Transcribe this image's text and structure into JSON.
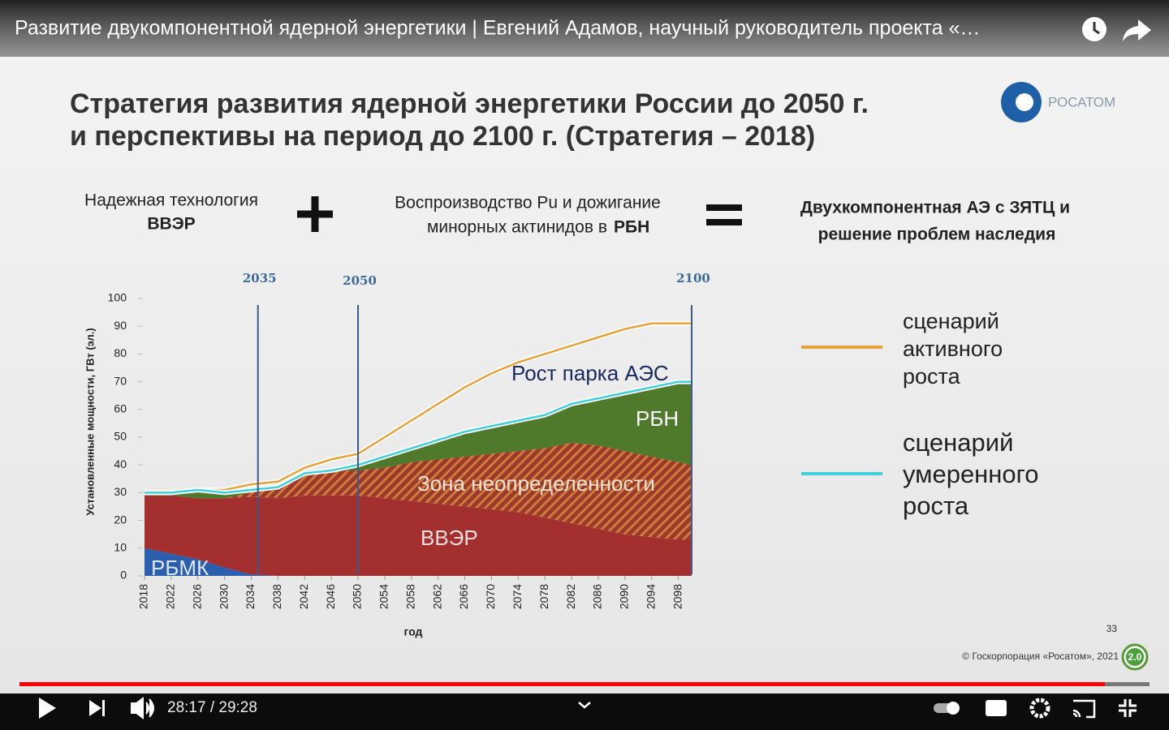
{
  "video": {
    "title": "Развитие двукомпонентной ядерной энергетики | Евгений Адамов, научный руководитель проекта «…",
    "time": "28:17 / 29:28"
  },
  "slide": {
    "title_lines": [
      "Стратегия развития ядерной энергетики России до 2050 г.",
      "и перспективы на период до 2100 г. (Стратегия – 2018)"
    ],
    "logo": "РОСАТОМ",
    "formula": {
      "left": [
        "Надежная технология",
        "ВВЭР"
      ],
      "middle": [
        "Воспроизводство Pu и дожигание",
        "минорных актинидов в",
        "РБН"
      ],
      "right": [
        "Двухкомпонентная АЭ с ЗЯТЦ и",
        "решение проблем наследия"
      ]
    },
    "page_number": "33",
    "copyright": "© Госкорпорация «Росатом», 2021",
    "badge": "2.0"
  },
  "chart_data": {
    "type": "area",
    "x_label": "год",
    "y_label": "Установленные мощности, ГВт (эл.)",
    "annotation": "Рост парка АЭС",
    "x": [
      2018,
      2022,
      2026,
      2030,
      2034,
      2038,
      2042,
      2046,
      2050,
      2054,
      2058,
      2062,
      2066,
      2070,
      2074,
      2078,
      2082,
      2086,
      2090,
      2094,
      2098,
      2100
    ],
    "series": [
      {
        "name": "РБМК",
        "color": "#2b5fae",
        "values": [
          10,
          8,
          6,
          3,
          0.5,
          0,
          0,
          0,
          0,
          0,
          0,
          0,
          0,
          0,
          0,
          0,
          0,
          0,
          0,
          0,
          0,
          0
        ]
      },
      {
        "name": "ВВЭР",
        "color": "#a3302f",
        "values": [
          19,
          21,
          22,
          25,
          28,
          28,
          29,
          29,
          29,
          28,
          27,
          26,
          25,
          24,
          23,
          21,
          19,
          17,
          15,
          14,
          13,
          13
        ]
      },
      {
        "name": "Зона неопределенности",
        "color": "#c86a3a",
        "values": [
          0,
          0,
          0,
          0,
          1.5,
          4,
          8,
          9,
          9,
          11,
          14,
          16,
          18,
          20,
          22,
          25,
          29,
          30,
          30,
          29,
          28,
          27
        ]
      },
      {
        "name": "РБН",
        "color": "#4f7a2c",
        "values": [
          1,
          1,
          3,
          2,
          1,
          0,
          0,
          0,
          2,
          4,
          5,
          7,
          9,
          10,
          11,
          12,
          14,
          17,
          21,
          25,
          29,
          30
        ]
      }
    ],
    "lines": [
      {
        "name": "сценарий активного роста",
        "color": "#e8a23a",
        "values": [
          30,
          30,
          31,
          31,
          33,
          34,
          39,
          42,
          44,
          50,
          56,
          62,
          68,
          73,
          77,
          80,
          83,
          86,
          89,
          91,
          91,
          91
        ]
      },
      {
        "name": "сценарий умеренного роста",
        "color": "#3fd0dc",
        "values": [
          30,
          30,
          31,
          30,
          31,
          32,
          37,
          38,
          40,
          43,
          46,
          49,
          52,
          54,
          56,
          58,
          62,
          64,
          66,
          68,
          70,
          70
        ]
      }
    ],
    "vlines": [
      2035,
      2050,
      2100
    ],
    "xlim": [
      2018,
      2100
    ],
    "ylim": [
      0,
      100
    ],
    "xticks": [
      2018,
      2022,
      2026,
      2030,
      2034,
      2038,
      2042,
      2046,
      2050,
      2054,
      2058,
      2062,
      2066,
      2070,
      2074,
      2078,
      2082,
      2086,
      2090,
      2094,
      2098
    ],
    "yticks": [
      0,
      10,
      20,
      30,
      40,
      50,
      60,
      70,
      80,
      90,
      100
    ]
  }
}
